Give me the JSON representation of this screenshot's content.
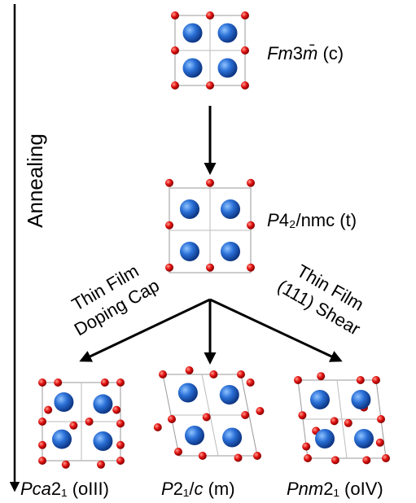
{
  "annealing_label": "Annealing",
  "nodes": [
    {
      "label": [
        {
          "text": "Fm",
          "italic": true
        },
        {
          "text": "3",
          "italic": false
        },
        {
          "text": "m̄",
          "italic": true
        },
        {
          "text": " (c)",
          "italic": false
        }
      ]
    },
    {
      "label": [
        {
          "text": "P",
          "italic": true
        },
        {
          "text": "4₂/nmc (t)",
          "italic": false
        }
      ]
    },
    {
      "label": [
        {
          "text": "Pca",
          "italic": true
        },
        {
          "text": "2₁ (oIII)",
          "italic": false
        }
      ]
    },
    {
      "label": [
        {
          "text": "P",
          "italic": true
        },
        {
          "text": "2₁/",
          "italic": false
        },
        {
          "text": "c",
          "italic": true
        },
        {
          "text": " (m)",
          "italic": false
        }
      ]
    },
    {
      "label": [
        {
          "text": "Pnm",
          "italic": true
        },
        {
          "text": "2₁ (oIV)",
          "italic": false
        }
      ]
    }
  ],
  "edges": [
    {
      "label": [
        "Thin Film",
        "Doping Cap"
      ]
    },
    {
      "label": [
        "Thin Film",
        "(111) Shear"
      ]
    }
  ]
}
